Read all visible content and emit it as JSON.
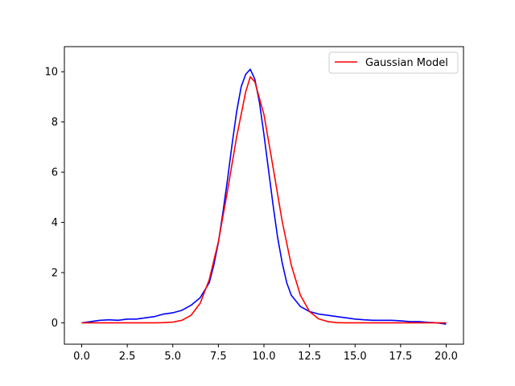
{
  "chart_data": {
    "type": "line",
    "title": "",
    "xlabel": "",
    "ylabel": "",
    "xlim": [
      -0.95,
      20.95
    ],
    "ylim": [
      -0.85,
      11.0
    ],
    "xticks": [
      0.0,
      2.5,
      5.0,
      7.5,
      10.0,
      12.5,
      15.0,
      17.5,
      20.0
    ],
    "xtick_labels": [
      "0.0",
      "2.5",
      "5.0",
      "7.5",
      "10.0",
      "12.5",
      "15.0",
      "17.5",
      "20.0"
    ],
    "yticks": [
      0,
      2,
      4,
      6,
      8,
      10
    ],
    "ytick_labels": [
      "0",
      "2",
      "4",
      "6",
      "8",
      "10"
    ],
    "grid": false,
    "legend_position": "top-right",
    "series": [
      {
        "name": "",
        "color": "#0000ff",
        "style": "noisy data line",
        "x": [
          0.0,
          0.5,
          1.0,
          1.5,
          2.0,
          2.5,
          3.0,
          3.5,
          4.0,
          4.5,
          5.0,
          5.5,
          6.0,
          6.5,
          7.0,
          7.25,
          7.5,
          7.75,
          8.0,
          8.25,
          8.5,
          8.75,
          9.0,
          9.25,
          9.5,
          9.75,
          10.0,
          10.25,
          10.5,
          10.75,
          11.0,
          11.25,
          11.5,
          12.0,
          12.5,
          13.0,
          13.5,
          14.0,
          14.5,
          15.0,
          15.5,
          16.0,
          16.5,
          17.0,
          17.5,
          18.0,
          18.5,
          19.0,
          19.5,
          20.0
        ],
        "y": [
          0.0,
          0.05,
          0.1,
          0.12,
          0.1,
          0.15,
          0.15,
          0.2,
          0.25,
          0.35,
          0.4,
          0.5,
          0.7,
          1.0,
          1.6,
          2.3,
          3.2,
          4.4,
          5.7,
          7.1,
          8.4,
          9.4,
          9.9,
          10.1,
          9.7,
          8.8,
          7.5,
          6.1,
          4.7,
          3.4,
          2.4,
          1.6,
          1.1,
          0.65,
          0.45,
          0.35,
          0.3,
          0.25,
          0.2,
          0.15,
          0.12,
          0.1,
          0.1,
          0.1,
          0.08,
          0.05,
          0.05,
          0.02,
          0.0,
          -0.05
        ]
      },
      {
        "name": "Gaussian Model",
        "color": "#ff0000",
        "style": "smooth line",
        "x": [
          0.0,
          0.5,
          1.0,
          1.5,
          2.0,
          2.5,
          3.0,
          3.5,
          4.0,
          4.5,
          5.0,
          5.5,
          6.0,
          6.5,
          7.0,
          7.5,
          8.0,
          8.5,
          9.0,
          9.25,
          9.5,
          10.0,
          10.5,
          11.0,
          11.5,
          12.0,
          12.5,
          13.0,
          13.5,
          14.0,
          14.5,
          15.0,
          15.5,
          16.0,
          16.5,
          17.0,
          17.5,
          18.0,
          18.5,
          19.0,
          19.5,
          20.0
        ],
        "y": [
          0.0,
          0.0,
          0.0,
          0.0,
          0.0,
          0.0,
          0.0,
          0.0,
          0.0,
          0.01,
          0.03,
          0.1,
          0.3,
          0.78,
          1.72,
          3.23,
          5.25,
          7.4,
          9.2,
          9.8,
          9.6,
          8.3,
          6.2,
          4.05,
          2.3,
          1.1,
          0.45,
          0.16,
          0.05,
          0.01,
          0.0,
          0.0,
          0.0,
          0.0,
          0.0,
          0.0,
          0.0,
          0.0,
          0.0,
          0.0,
          0.0,
          0.0
        ]
      }
    ]
  }
}
